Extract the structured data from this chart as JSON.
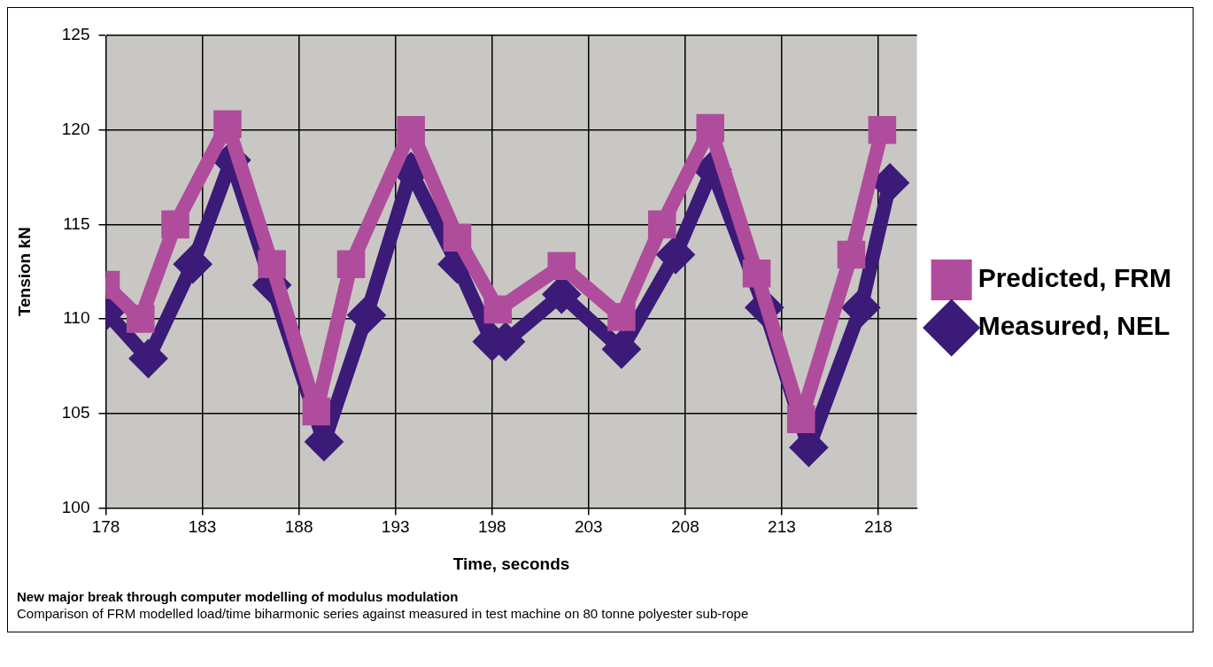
{
  "chart_data": {
    "type": "line",
    "xlabel": "Time, seconds",
    "ylabel": "Tension kN",
    "xlim": [
      178,
      220
    ],
    "xticks": [
      178,
      183,
      188,
      193,
      198,
      203,
      208,
      213,
      218
    ],
    "ylim": [
      100,
      125
    ],
    "yticks": [
      100,
      105,
      110,
      115,
      120,
      125
    ],
    "grid": true,
    "legend": "right",
    "series": [
      {
        "name": "Measured, NEL",
        "color": "#3b1a78",
        "marker": "diamond",
        "x": [
          178.0,
          180.2,
          182.5,
          184.5,
          186.6,
          189.3,
          191.5,
          193.8,
          196.2,
          198.0,
          198.7,
          201.6,
          204.7,
          207.5,
          209.4,
          212.1,
          214.4,
          217.1,
          218.6
        ],
        "values": [
          110.4,
          107.9,
          112.9,
          118.4,
          111.8,
          103.5,
          110.2,
          117.8,
          112.9,
          108.8,
          108.8,
          111.3,
          108.4,
          113.4,
          117.9,
          110.6,
          103.2,
          110.6,
          117.2
        ]
      },
      {
        "name": "Predicted, FRM",
        "color": "#b04c9c",
        "marker": "square",
        "x": [
          178.0,
          179.8,
          181.6,
          184.3,
          186.6,
          188.9,
          190.7,
          193.8,
          196.2,
          198.3,
          201.6,
          204.7,
          206.8,
          209.3,
          211.7,
          214.0,
          216.6,
          218.2
        ],
        "values": [
          111.8,
          110.0,
          115.0,
          120.3,
          112.9,
          105.1,
          112.9,
          120.0,
          114.3,
          110.5,
          112.8,
          110.1,
          115.0,
          120.1,
          112.4,
          104.7,
          113.4,
          120.0
        ]
      }
    ],
    "annotations": [
      "New major break through computer modelling of modulus modulation",
      "Comparison of FRM modelled load/time biharmonic series against measured in test machine on 80 tonne polyester sub-rope"
    ]
  }
}
